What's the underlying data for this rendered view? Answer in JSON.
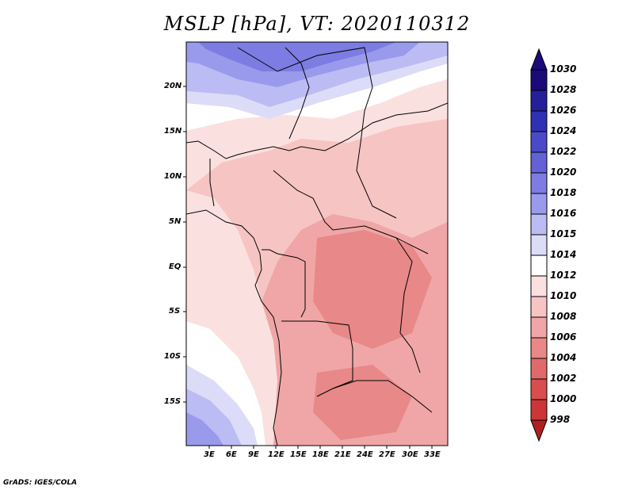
{
  "title": "MSLP [hPa], VT: 2020110312",
  "credit": "GrADS: IGES/COLA",
  "lat_labels": [
    "20N",
    "15N",
    "10N",
    "5N",
    "EQ",
    "5S",
    "10S",
    "15S"
  ],
  "lon_labels": [
    "3E",
    "6E",
    "9E",
    "12E",
    "15E",
    "18E",
    "21E",
    "24E",
    "27E",
    "30E",
    "33E"
  ],
  "colorbar": {
    "labels": [
      "1030",
      "1028",
      "1026",
      "1024",
      "1022",
      "1020",
      "1018",
      "1016",
      "1015",
      "1014",
      "1012",
      "1010",
      "1008",
      "1006",
      "1004",
      "1002",
      "1000",
      "998"
    ],
    "colors": [
      "#1a0a7a",
      "#24209a",
      "#3030b4",
      "#4a4ac8",
      "#6262d6",
      "#7c7ce2",
      "#9a9aec",
      "#bcbcf4",
      "#dcdcf8",
      "#ffffff",
      "#fbe0e0",
      "#f7c4c4",
      "#f0a6a6",
      "#e88888",
      "#e06a6a",
      "#d84e4e",
      "#cc3636",
      "#b02020"
    ]
  },
  "chart_data": {
    "type": "heatmap",
    "variable": "MSLP",
    "units": "hPa",
    "valid_time": "2020110312",
    "lon_range": [
      0,
      35
    ],
    "lat_range": [
      -20,
      25
    ],
    "lon_ticks": [
      3,
      6,
      9,
      12,
      15,
      18,
      21,
      24,
      27,
      30,
      33
    ],
    "lat_ticks": [
      20,
      15,
      10,
      5,
      0,
      -5,
      -10,
      -15
    ],
    "levels": [
      998,
      1000,
      1002,
      1004,
      1006,
      1008,
      1010,
      1012,
      1014,
      1015,
      1016,
      1018,
      1020,
      1022,
      1024,
      1026,
      1028,
      1030
    ]
  }
}
